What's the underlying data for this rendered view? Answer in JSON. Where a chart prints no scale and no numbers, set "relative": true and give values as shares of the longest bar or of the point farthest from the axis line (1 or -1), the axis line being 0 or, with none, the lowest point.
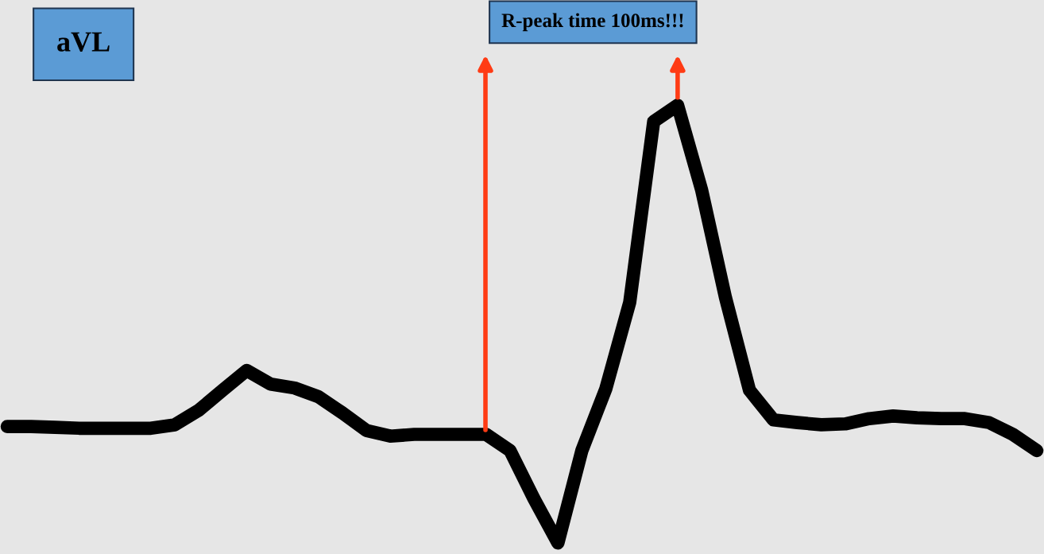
{
  "chart_data": {
    "type": "line",
    "title": "aVL",
    "relative": true,
    "annotations": [
      "R-peak time 100ms!!!"
    ],
    "categories": [
      null,
      null,
      null,
      null,
      null,
      null,
      null,
      null,
      null,
      null,
      null,
      null,
      null,
      null,
      null,
      null,
      null,
      null,
      null,
      null,
      null,
      null,
      null,
      null,
      null,
      null,
      null,
      null,
      null,
      null,
      null,
      null,
      null,
      null,
      null,
      null,
      null,
      null,
      null,
      null,
      null,
      null,
      null,
      null
    ],
    "series": [
      {
        "color": "#000000",
        "values": [
          0.266,
          0.266,
          0.264,
          0.262,
          0.262,
          0.262,
          0.262,
          0.27,
          0.303,
          0.349,
          0.394,
          0.363,
          0.354,
          0.334,
          0.297,
          0.257,
          0.244,
          0.248,
          0.248,
          0.248,
          0.248,
          0.211,
          0.101,
          0,
          0.211,
          0.352,
          0.55,
          0.963,
          1,
          0.807,
          0.56,
          0.349,
          0.281,
          0.275,
          0.27,
          0.272,
          0.284,
          0.29,
          0.286,
          0.284,
          0.284,
          0.275,
          0.248,
          0.211
        ]
      }
    ],
    "line_style": "solid"
  }
}
